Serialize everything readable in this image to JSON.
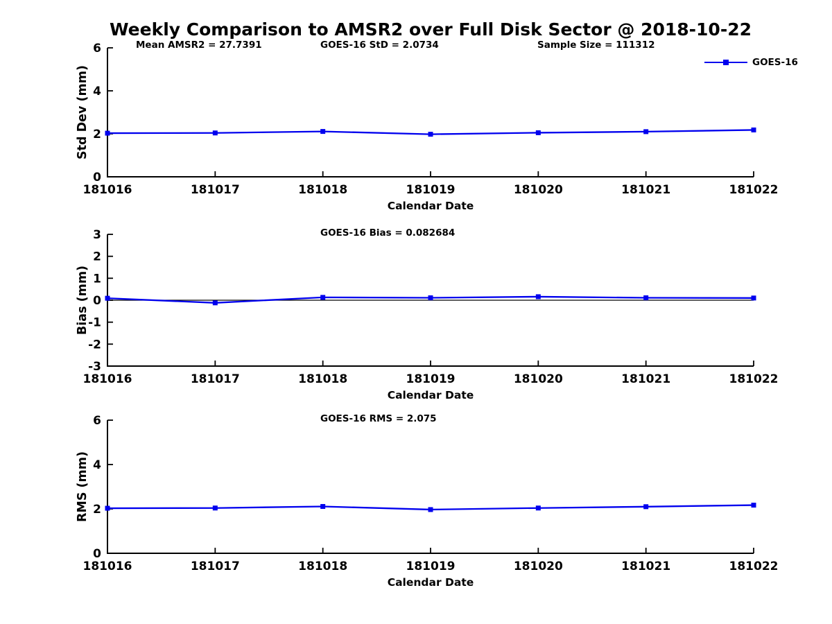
{
  "title": "Weekly Comparison to AMSR2 over Full Disk Sector @ 2018-10-22",
  "legend": {
    "label": "GOES-16",
    "color": "#0000ee",
    "marker": "square"
  },
  "chart_data": [
    {
      "type": "line",
      "ylabel": "Std Dev (mm)",
      "xlabel": "Calendar Date",
      "ylim": [
        0,
        6
      ],
      "yticks": [
        0,
        2,
        4,
        6
      ],
      "x": [
        "181016",
        "181017",
        "181018",
        "181019",
        "181020",
        "181021",
        "181022"
      ],
      "grid": false,
      "zero_line": false,
      "legend_position": "upper-right",
      "annotations": [
        "Mean AMSR2 = 27.7391",
        "GOES-16 StD = 2.0734",
        "Sample Size = 111312"
      ],
      "series": [
        {
          "name": "GOES-16",
          "color": "#0000ee",
          "marker": "square",
          "values": [
            2.03,
            2.04,
            2.11,
            1.98,
            2.05,
            2.1,
            2.18
          ]
        }
      ]
    },
    {
      "type": "line",
      "ylabel": "Bias (mm)",
      "xlabel": "Calendar Date",
      "ylim": [
        -3,
        3
      ],
      "yticks": [
        -3,
        -2,
        -1,
        0,
        1,
        2,
        3
      ],
      "x": [
        "181016",
        "181017",
        "181018",
        "181019",
        "181020",
        "181021",
        "181022"
      ],
      "grid": false,
      "zero_line": true,
      "annotations": [
        "GOES-16 Bias  = 0.082684"
      ],
      "series": [
        {
          "name": "GOES-16",
          "color": "#0000ee",
          "marker": "square",
          "values": [
            0.09,
            -0.12,
            0.13,
            0.11,
            0.16,
            0.11,
            0.1
          ]
        }
      ]
    },
    {
      "type": "line",
      "ylabel": "RMS (mm)",
      "xlabel": "Calendar Date",
      "ylim": [
        0,
        6
      ],
      "yticks": [
        0,
        2,
        4,
        6
      ],
      "x": [
        "181016",
        "181017",
        "181018",
        "181019",
        "181020",
        "181021",
        "181022"
      ],
      "grid": false,
      "zero_line": false,
      "annotations": [
        "GOES-16 RMS = 2.075"
      ],
      "series": [
        {
          "name": "GOES-16",
          "color": "#0000ee",
          "marker": "square",
          "values": [
            2.03,
            2.04,
            2.11,
            1.97,
            2.04,
            2.1,
            2.17
          ]
        }
      ]
    }
  ]
}
